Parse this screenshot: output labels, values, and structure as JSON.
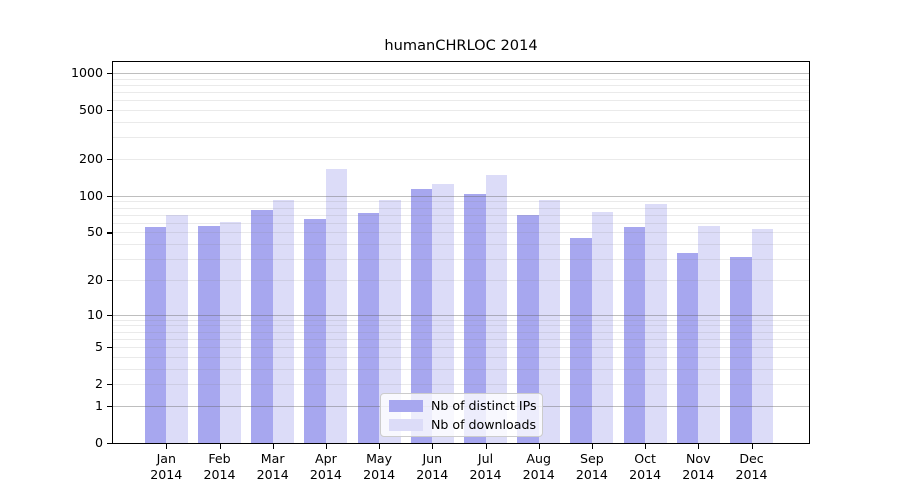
{
  "chart_data": {
    "type": "bar",
    "title": "humanCHRLOC 2014",
    "categories": [
      "Jan",
      "Feb",
      "Mar",
      "Apr",
      "May",
      "Jun",
      "Jul",
      "Aug",
      "Sep",
      "Oct",
      "Nov",
      "Dec"
    ],
    "x_axis": {
      "year": "2014"
    },
    "series": [
      {
        "name": "Nb of distinct IPs",
        "color": "#a7a7ef",
        "values": [
          55,
          57,
          77,
          65,
          73,
          113,
          103,
          70,
          45,
          56,
          34,
          31
        ]
      },
      {
        "name": "Nb of downloads",
        "color": "#dcdcf8",
        "values": [
          70,
          61,
          92,
          166,
          92,
          124,
          148,
          92,
          74,
          85,
          57,
          53
        ]
      }
    ],
    "y_axis": {
      "scale": "log10(value+1)",
      "tick_values": [
        0,
        1,
        2,
        5,
        10,
        20,
        50,
        100,
        200,
        500,
        1000
      ],
      "tick_labels": [
        "0",
        "1",
        "2",
        "5",
        "10",
        "20",
        "50",
        "100",
        "200",
        "500",
        "1000"
      ],
      "major_grid_values": [
        1,
        10,
        100,
        1000
      ],
      "labeled_minor_grid_values": [
        2,
        5,
        20,
        50,
        200,
        500
      ],
      "unlabeled_minor_grid_values": [
        3,
        4,
        6,
        7,
        8,
        9,
        30,
        40,
        60,
        70,
        80,
        90,
        300,
        400,
        600,
        700,
        800,
        900
      ],
      "ylim": [
        0,
        1253
      ]
    },
    "grid": true,
    "legend_position": "lower-center-inside",
    "colors": {
      "bar_ips": "#a7a7ef",
      "bar_downloads": "#dcdcf8",
      "major_grid": "rgba(100,100,100,0.42)",
      "minor_grid": "rgba(140,140,140,0.18)",
      "spine": "#000000",
      "background": "#ffffff"
    }
  }
}
